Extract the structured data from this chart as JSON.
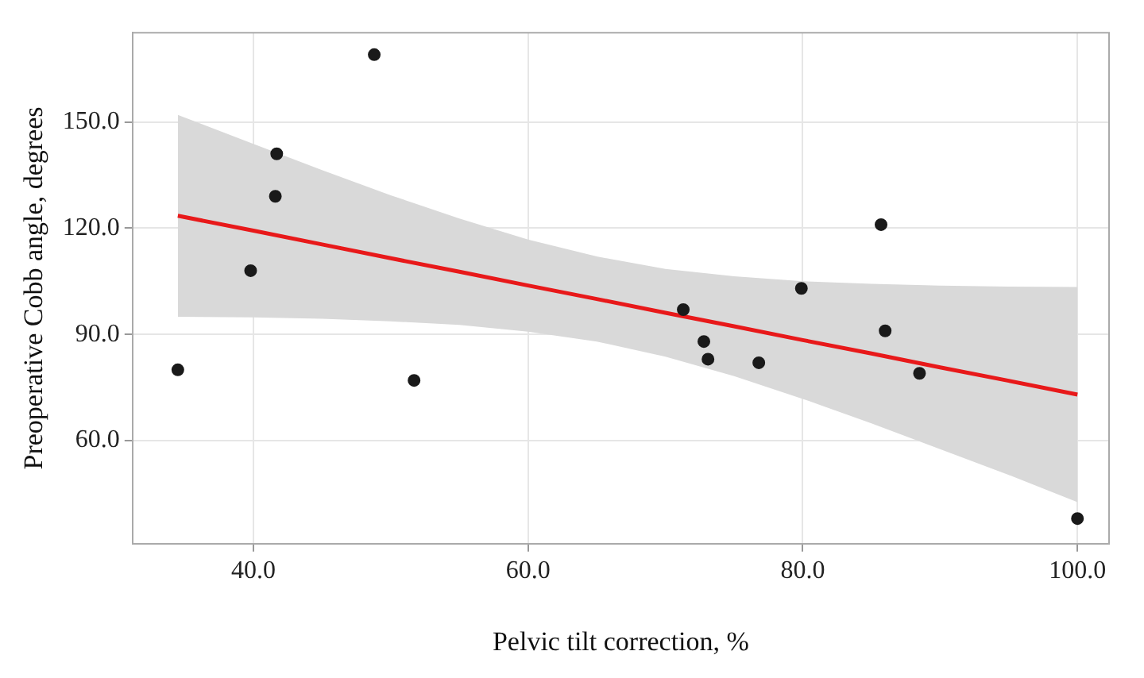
{
  "chart_data": {
    "type": "scatter",
    "xlabel": "Pelvic tilt correction, %",
    "ylabel": "Preoperative Cobb angle, degrees",
    "xlim": [
      31.2,
      102.3
    ],
    "ylim": [
      30.9,
      175.2
    ],
    "xticks": [
      {
        "value": 40,
        "label": "40.0"
      },
      {
        "value": 60,
        "label": "60.0"
      },
      {
        "value": 80,
        "label": "80.0"
      },
      {
        "value": 100,
        "label": "100.0"
      }
    ],
    "yticks": [
      {
        "value": 60,
        "label": "60.0"
      },
      {
        "value": 90,
        "label": "90.0"
      },
      {
        "value": 120,
        "label": "120.0"
      },
      {
        "value": 150,
        "label": "150.0"
      }
    ],
    "grid": true,
    "legend": false,
    "marker": "circle",
    "series": [
      {
        "type": "line",
        "color": "#e8191a",
        "line_style": "solid",
        "marker": "none",
        "x": [
          34.5,
          40,
          45,
          50,
          55,
          60,
          65,
          70,
          75,
          80,
          85,
          90,
          95,
          100
        ],
        "values": [
          123.5,
          119.3,
          115.4,
          111.5,
          107.7,
          103.8,
          100.0,
          96.1,
          92.3,
          88.4,
          84.6,
          80.7,
          76.9,
          73.0
        ],
        "lower": [
          95.0,
          94.8,
          94.4,
          93.7,
          92.7,
          90.8,
          88.0,
          83.7,
          78.2,
          71.8,
          64.9,
          57.6,
          50.3,
          42.6
        ],
        "upper": [
          152.0,
          143.8,
          136.4,
          129.3,
          122.7,
          116.8,
          112.0,
          108.5,
          106.4,
          105.0,
          104.3,
          103.8,
          103.5,
          103.4
        ]
      },
      {
        "type": "scatter",
        "color": "#1a1a1a",
        "x": [
          34.5,
          39.8,
          41.7,
          41.6,
          48.8,
          51.7,
          71.3,
          72.8,
          73.1,
          76.8,
          79.9,
          85.7,
          86.0,
          88.5,
          100
        ],
        "values": [
          80,
          108,
          141,
          129,
          169,
          77,
          97,
          88,
          83,
          82,
          103,
          121,
          91,
          79,
          38
        ]
      }
    ]
  }
}
